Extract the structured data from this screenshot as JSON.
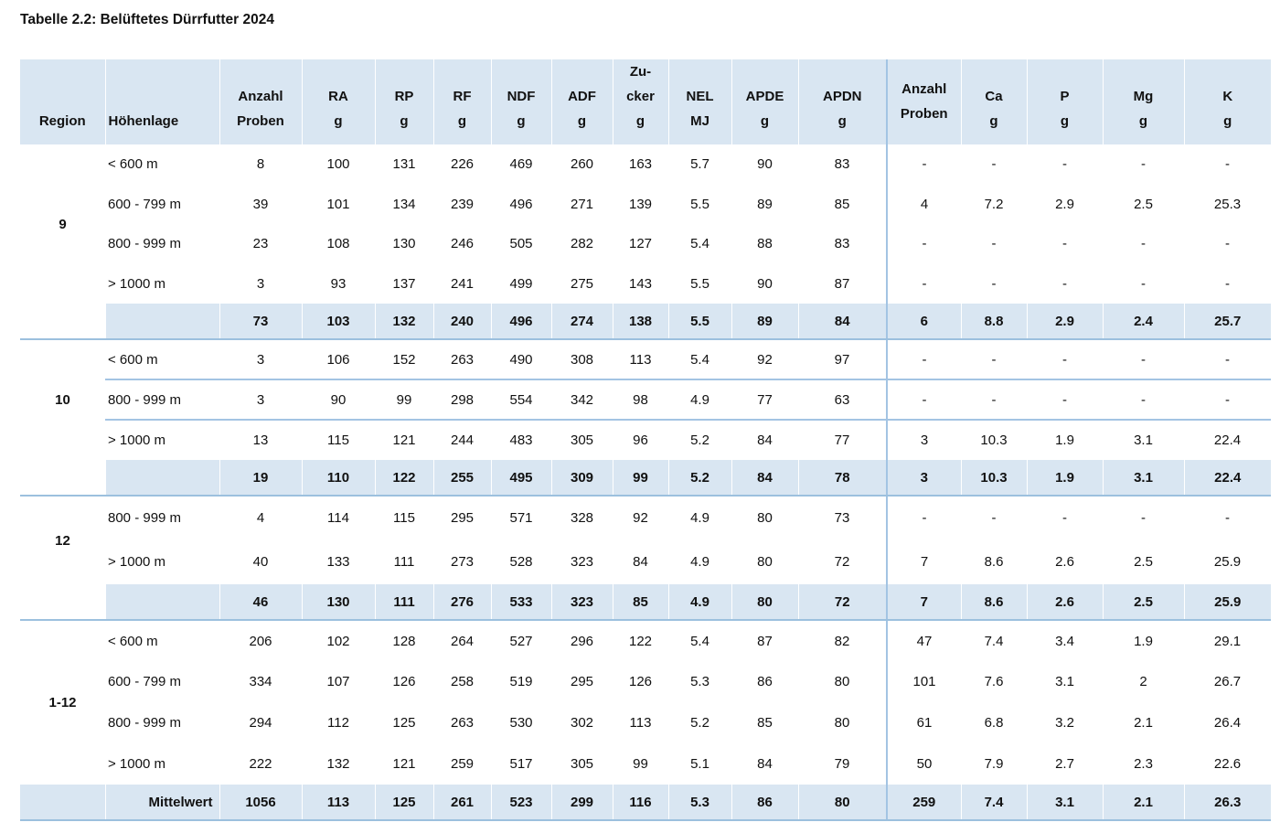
{
  "title": "Tabelle 2.2: Belüftetes Dürrfutter 2024",
  "colors": {
    "header_fill": "#d9e6f2",
    "summary_fill": "#d9e6f2",
    "block_border": "#9cc0de",
    "section_divider": "#a3c4e3"
  },
  "table": {
    "columns": [
      {
        "key": "region",
        "label_lines": [
          "Region"
        ],
        "align": "center"
      },
      {
        "key": "hoehenlage",
        "label_lines": [
          "Höhenlage"
        ],
        "align": "left"
      },
      {
        "key": "anzahl-proben",
        "label_lines": [
          "Anzahl",
          "Proben"
        ],
        "align": "center"
      },
      {
        "key": "ra",
        "label_lines": [
          "RA",
          "g"
        ],
        "align": "center"
      },
      {
        "key": "rp",
        "label_lines": [
          "RP",
          "g"
        ],
        "align": "center"
      },
      {
        "key": "rf",
        "label_lines": [
          "RF",
          "g"
        ],
        "align": "center"
      },
      {
        "key": "ndf",
        "label_lines": [
          "NDF",
          "g"
        ],
        "align": "center"
      },
      {
        "key": "adf",
        "label_lines": [
          "ADF",
          "g"
        ],
        "align": "center"
      },
      {
        "key": "zucker",
        "label_lines": [
          "Zu-",
          "cker",
          "g"
        ],
        "align": "center"
      },
      {
        "key": "nel",
        "label_lines": [
          "NEL",
          "MJ"
        ],
        "align": "center"
      },
      {
        "key": "apde",
        "label_lines": [
          "APDE",
          "g"
        ],
        "align": "center"
      },
      {
        "key": "apdn",
        "label_lines": [
          "APDN",
          "g"
        ],
        "align": "center"
      },
      {
        "key": "anzahl-proben-2",
        "label_lines": [
          "Anzahl",
          "Proben"
        ],
        "align": "center",
        "divider_before": true,
        "valign": "middle"
      },
      {
        "key": "ca",
        "label_lines": [
          "Ca",
          "g"
        ],
        "align": "center"
      },
      {
        "key": "p",
        "label_lines": [
          "P",
          "g"
        ],
        "align": "center"
      },
      {
        "key": "mg",
        "label_lines": [
          "Mg",
          "g"
        ],
        "align": "center"
      },
      {
        "key": "k",
        "label_lines": [
          "K",
          "g"
        ],
        "align": "center"
      }
    ],
    "groups": [
      {
        "region": "9",
        "row_separators": false,
        "rows": [
          {
            "hoehenlage": "< 600 m",
            "values": [
              "8",
              "100",
              "131",
              "226",
              "469",
              "260",
              "163",
              "5.7",
              "90",
              "83",
              "-",
              "-",
              "-",
              "-",
              "-"
            ]
          },
          {
            "hoehenlage": "600 - 799 m",
            "values": [
              "39",
              "101",
              "134",
              "239",
              "496",
              "271",
              "139",
              "5.5",
              "89",
              "85",
              "4",
              "7.2",
              "2.9",
              "2.5",
              "25.3"
            ]
          },
          {
            "hoehenlage": "800 - 999 m",
            "values": [
              "23",
              "108",
              "130",
              "246",
              "505",
              "282",
              "127",
              "5.4",
              "88",
              "83",
              "-",
              "-",
              "-",
              "-",
              "-"
            ]
          },
          {
            "hoehenlage": "> 1000 m",
            "values": [
              "3",
              "93",
              "137",
              "241",
              "499",
              "275",
              "143",
              "5.5",
              "90",
              "87",
              "-",
              "-",
              "-",
              "-",
              "-"
            ]
          }
        ],
        "summary": {
          "label": "",
          "values": [
            "73",
            "103",
            "132",
            "240",
            "496",
            "274",
            "138",
            "5.5",
            "89",
            "84",
            "6",
            "8.8",
            "2.9",
            "2.4",
            "25.7"
          ],
          "full_width": false
        }
      },
      {
        "region": "10",
        "row_separators": true,
        "rows": [
          {
            "hoehenlage": "< 600 m",
            "values": [
              "3",
              "106",
              "152",
              "263",
              "490",
              "308",
              "113",
              "5.4",
              "92",
              "97",
              "-",
              "-",
              "-",
              "-",
              "-"
            ]
          },
          {
            "hoehenlage": "800 - 999 m",
            "values": [
              "3",
              "90",
              "99",
              "298",
              "554",
              "342",
              "98",
              "4.9",
              "77",
              "63",
              "-",
              "-",
              "-",
              "-",
              "-"
            ]
          },
          {
            "hoehenlage": "> 1000 m",
            "values": [
              "13",
              "115",
              "121",
              "244",
              "483",
              "305",
              "96",
              "5.2",
              "84",
              "77",
              "3",
              "10.3",
              "1.9",
              "3.1",
              "22.4"
            ]
          }
        ],
        "summary": {
          "label": "",
          "values": [
            "19",
            "110",
            "122",
            "255",
            "495",
            "309",
            "99",
            "5.2",
            "84",
            "78",
            "3",
            "10.3",
            "1.9",
            "3.1",
            "22.4"
          ],
          "full_width": false
        }
      },
      {
        "region": "12",
        "row_separators": false,
        "rows": [
          {
            "hoehenlage": "800 - 999 m",
            "values": [
              "4",
              "114",
              "115",
              "295",
              "571",
              "328",
              "92",
              "4.9",
              "80",
              "73",
              "-",
              "-",
              "-",
              "-",
              "-"
            ]
          },
          {
            "hoehenlage": "> 1000 m",
            "values": [
              "40",
              "133",
              "111",
              "273",
              "528",
              "323",
              "84",
              "4.9",
              "80",
              "72",
              "7",
              "8.6",
              "2.6",
              "2.5",
              "25.9"
            ]
          }
        ],
        "summary": {
          "label": "",
          "values": [
            "46",
            "130",
            "111",
            "276",
            "533",
            "323",
            "85",
            "4.9",
            "80",
            "72",
            "7",
            "8.6",
            "2.6",
            "2.5",
            "25.9"
          ],
          "full_width": false
        }
      },
      {
        "region": "1-12",
        "row_separators": false,
        "rows": [
          {
            "hoehenlage": "< 600 m",
            "values": [
              "206",
              "102",
              "128",
              "264",
              "527",
              "296",
              "122",
              "5.4",
              "87",
              "82",
              "47",
              "7.4",
              "3.4",
              "1.9",
              "29.1"
            ]
          },
          {
            "hoehenlage": "600 - 799 m",
            "values": [
              "334",
              "107",
              "126",
              "258",
              "519",
              "295",
              "126",
              "5.3",
              "86",
              "80",
              "101",
              "7.6",
              "3.1",
              "2",
              "26.7"
            ]
          },
          {
            "hoehenlage": "800 - 999 m",
            "values": [
              "294",
              "112",
              "125",
              "263",
              "530",
              "302",
              "113",
              "5.2",
              "85",
              "80",
              "61",
              "6.8",
              "3.2",
              "2.1",
              "26.4"
            ]
          },
          {
            "hoehenlage": "> 1000 m",
            "values": [
              "222",
              "132",
              "121",
              "259",
              "517",
              "305",
              "99",
              "5.1",
              "84",
              "79",
              "50",
              "7.9",
              "2.7",
              "2.3",
              "22.6"
            ]
          }
        ],
        "summary": {
          "label": "Mittelwert",
          "values": [
            "1056",
            "113",
            "125",
            "261",
            "523",
            "299",
            "116",
            "5.3",
            "86",
            "80",
            "259",
            "7.4",
            "3.1",
            "2.1",
            "26.3"
          ],
          "full_width": true
        }
      }
    ]
  }
}
